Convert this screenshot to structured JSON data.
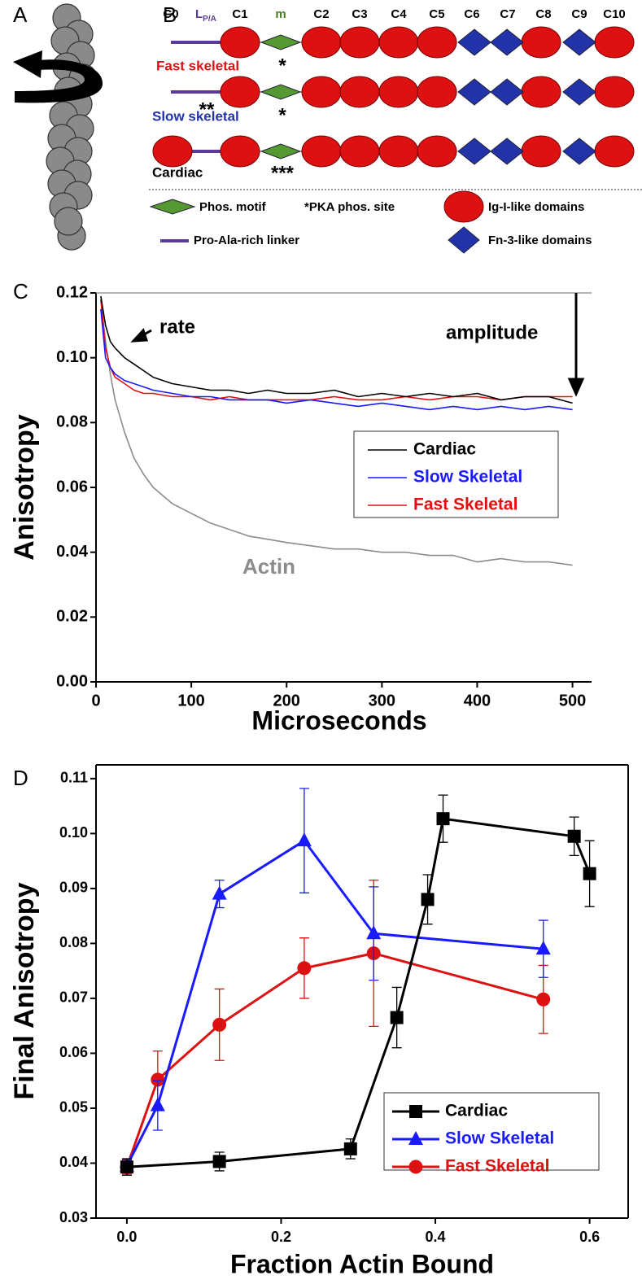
{
  "panel_labels": [
    "A",
    "B",
    "C",
    "D"
  ],
  "panel_b": {
    "columns": [
      "C0",
      {
        "main": "L",
        "sub": "P/A"
      },
      "C1",
      "m",
      "C2",
      "C3",
      "C4",
      "C5",
      "C6",
      "C7",
      "C8",
      "C9",
      "C10"
    ],
    "rows": [
      {
        "name": "Fast skeletal",
        "asterisks": [
          "*"
        ]
      },
      {
        "name": "Slow skeletal",
        "asterisks": [
          "**",
          "*"
        ]
      },
      {
        "name": "Cardiac",
        "asterisks": [
          "***"
        ]
      }
    ],
    "legend": [
      "Phos. motif",
      "*PKA phos. site",
      "Ig-I-like domains",
      "Pro-Ala-rich linker",
      "Fn-3-like domains"
    ]
  },
  "chart_data": [
    {
      "type": "line",
      "x_label": "Microseconds",
      "y_label": "Anisotropy",
      "annotations": [
        "rate",
        "amplitude"
      ],
      "xlim": [
        0,
        520
      ],
      "xticks": [
        0,
        100,
        200,
        300,
        400,
        500
      ],
      "ylim": [
        0,
        0.12
      ],
      "yticks": [
        {
          "value": 0,
          "label": "0.00"
        },
        0.02,
        0.04,
        0.06,
        0.08,
        {
          "value": 0.1,
          "label": "0.10"
        },
        {
          "value": 0.12,
          "label": "0.12"
        }
      ],
      "x": [
        5,
        10,
        15,
        20,
        30,
        40,
        50,
        60,
        80,
        100,
        120,
        140,
        160,
        180,
        200,
        225,
        250,
        275,
        300,
        325,
        350,
        375,
        400,
        425,
        450,
        475,
        500
      ],
      "series": [
        {
          "name": "Cardiac",
          "color": "#000000",
          "values": [
            0.119,
            0.11,
            0.105,
            0.103,
            0.1,
            0.098,
            0.096,
            0.094,
            0.092,
            0.091,
            0.09,
            0.09,
            0.089,
            0.09,
            0.089,
            0.089,
            0.09,
            0.088,
            0.089,
            0.088,
            0.089,
            0.088,
            0.089,
            0.087,
            0.088,
            0.088,
            0.086
          ]
        },
        {
          "name": "Slow Skeletal",
          "color": "#1a1aff",
          "values": [
            0.115,
            0.1,
            0.097,
            0.095,
            0.093,
            0.092,
            0.091,
            0.09,
            0.089,
            0.088,
            0.088,
            0.087,
            0.087,
            0.087,
            0.086,
            0.087,
            0.086,
            0.085,
            0.086,
            0.085,
            0.084,
            0.085,
            0.084,
            0.085,
            0.084,
            0.085,
            0.084
          ]
        },
        {
          "name": "Fast Skeletal",
          "color": "#e01010",
          "values": [
            0.118,
            0.103,
            0.097,
            0.094,
            0.092,
            0.09,
            0.089,
            0.089,
            0.088,
            0.088,
            0.087,
            0.088,
            0.087,
            0.087,
            0.087,
            0.087,
            0.088,
            0.087,
            0.087,
            0.088,
            0.087,
            0.088,
            0.088,
            0.087,
            0.088,
            0.088,
            0.088
          ]
        },
        {
          "name": "Actin",
          "color": "#8c8c8c",
          "in_legend": false,
          "values": [
            0.118,
            0.105,
            0.095,
            0.087,
            0.077,
            0.069,
            0.064,
            0.06,
            0.055,
            0.052,
            0.049,
            0.047,
            0.045,
            0.044,
            0.043,
            0.042,
            0.041,
            0.041,
            0.04,
            0.04,
            0.039,
            0.039,
            0.037,
            0.038,
            0.037,
            0.037,
            0.036
          ]
        }
      ]
    },
    {
      "type": "line",
      "x_label": "Fraction Actin Bound",
      "y_label": "Final Anisotropy",
      "xlim": [
        -0.04,
        0.65
      ],
      "xticks": [
        {
          "value": 0,
          "label": "0.0"
        },
        0.2,
        0.4,
        0.6
      ],
      "ylim": [
        0.03,
        0.1125
      ],
      "yticks": [
        0.03,
        0.04,
        0.05,
        0.06,
        0.07,
        0.08,
        0.09,
        {
          "value": 0.1,
          "label": "0.10"
        },
        0.11
      ],
      "series": [
        {
          "name": "Cardiac",
          "color": "#000000",
          "marker": "square",
          "x": [
            0,
            0.12,
            0.29,
            0.35,
            0.39,
            0.41,
            0.58,
            0.6
          ],
          "values": [
            0.0393,
            0.0403,
            0.0426,
            0.0665,
            0.088,
            0.1027,
            0.0995,
            0.0927
          ],
          "errors": [
            0.0015,
            0.0017,
            0.0018,
            0.0055,
            0.0045,
            0.0043,
            0.0035,
            0.006
          ]
        },
        {
          "name": "Slow Skeletal",
          "color": "#1a1aff",
          "marker": "triangle",
          "x": [
            0,
            0.04,
            0.12,
            0.23,
            0.32,
            0.54
          ],
          "values": [
            0.0395,
            0.0505,
            0.089,
            0.0987,
            0.0818,
            0.079
          ],
          "errors": [
            0.0012,
            0.0045,
            0.0025,
            0.0095,
            0.0085,
            0.0052
          ]
        },
        {
          "name": "Fast Skeletal",
          "color": "#dd1111",
          "marker": "circle",
          "x": [
            0,
            0.04,
            0.12,
            0.23,
            0.32,
            0.54
          ],
          "values": [
            0.0393,
            0.0552,
            0.0652,
            0.0755,
            0.0782,
            0.0698
          ],
          "errors": [
            0.0013,
            0.0052,
            0.0065,
            0.0055,
            0.0133,
            0.0062
          ]
        }
      ]
    }
  ]
}
